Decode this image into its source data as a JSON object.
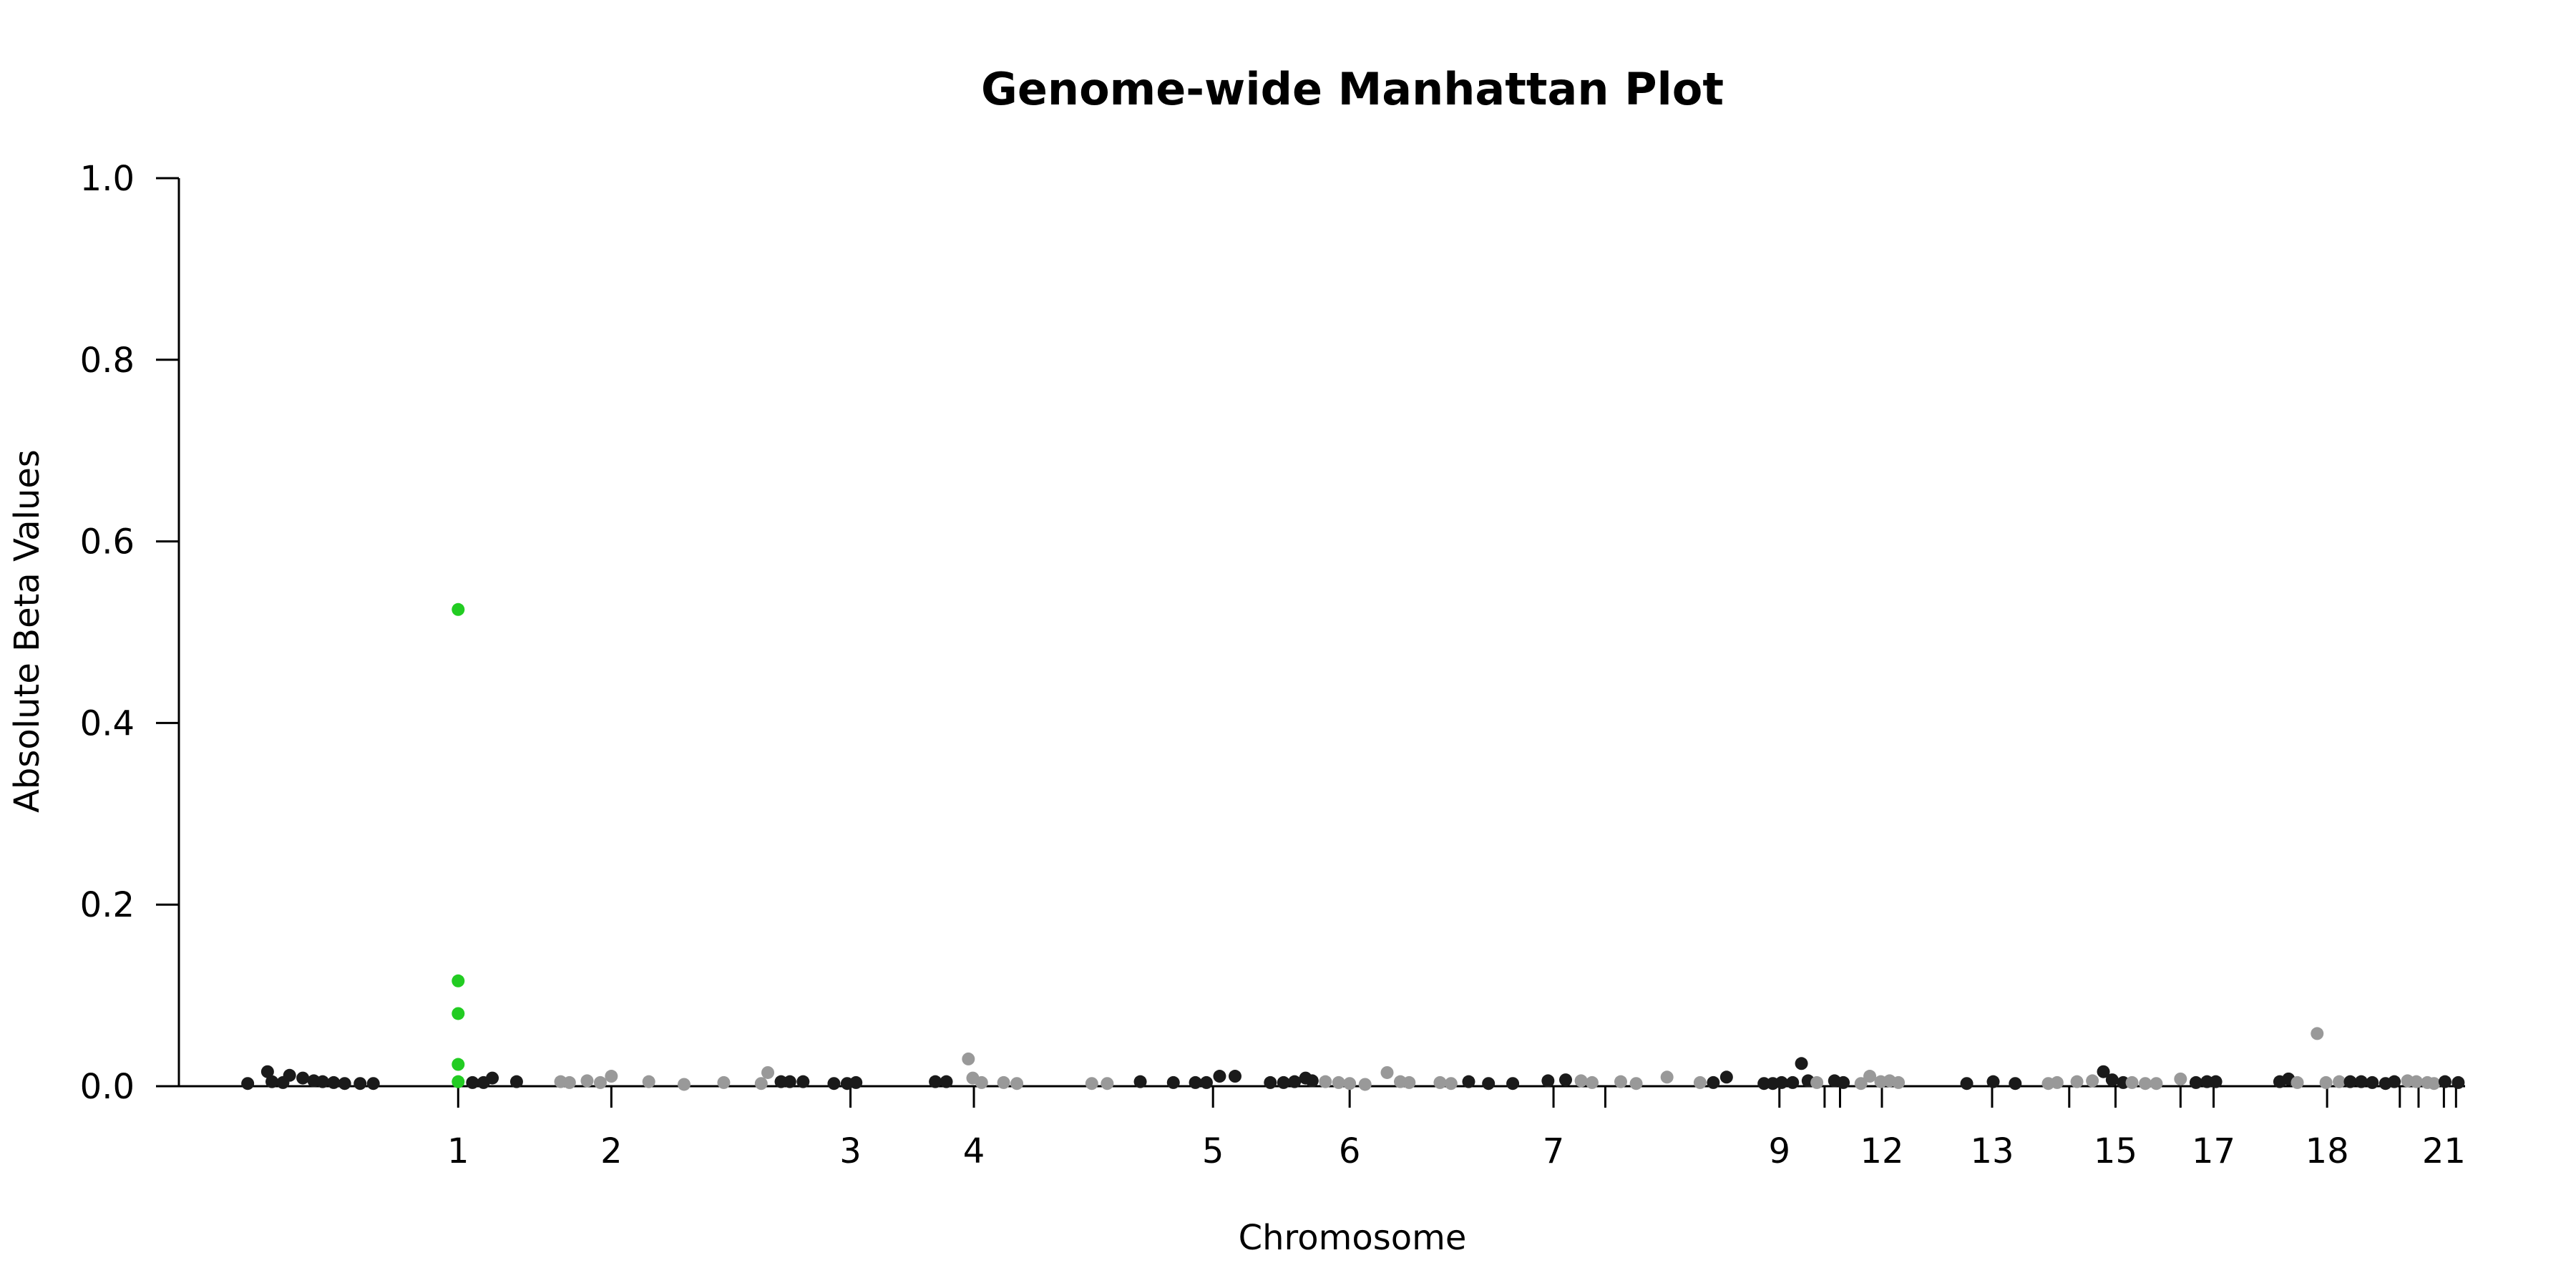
{
  "chart_data": {
    "type": "scatter",
    "title": "Genome-wide Manhattan Plot",
    "xlabel": "Chromosome",
    "ylabel": "Absolute Beta Values",
    "ylim": [
      0,
      1.0
    ],
    "yticks": [
      "0.0",
      "0.2",
      "0.4",
      "0.6",
      "0.8",
      "1.0"
    ],
    "xticks": [
      {
        "label": "1",
        "pos": 0.0975
      },
      {
        "label": "2",
        "pos": 0.167
      },
      {
        "label": "3",
        "pos": 0.2755
      },
      {
        "label": "4",
        "pos": 0.3315
      },
      {
        "label": "5",
        "pos": 0.44
      },
      {
        "label": "6",
        "pos": 0.502
      },
      {
        "label": "7",
        "pos": 0.5945
      },
      {
        "label": "",
        "pos": 0.618
      },
      {
        "label": "9",
        "pos": 0.697
      },
      {
        "label": "",
        "pos": 0.7175
      },
      {
        "label": "",
        "pos": 0.7245
      },
      {
        "label": "12",
        "pos": 0.7435
      },
      {
        "label": "13",
        "pos": 0.7935
      },
      {
        "label": "",
        "pos": 0.8285
      },
      {
        "label": "15",
        "pos": 0.8495
      },
      {
        "label": "",
        "pos": 0.879
      },
      {
        "label": "17",
        "pos": 0.894
      },
      {
        "label": "18",
        "pos": 0.9455
      },
      {
        "label": "",
        "pos": 0.9785
      },
      {
        "label": "",
        "pos": 0.987
      },
      {
        "label": "21",
        "pos": 0.9985
      },
      {
        "label": "",
        "pos": 1.004
      }
    ],
    "colors": {
      "dark": "#1a1a1a",
      "light": "#999999",
      "highlight": "#22cc22"
    },
    "points": [
      {
        "x": 0.002,
        "y": 0.003,
        "c": "dark"
      },
      {
        "x": 0.011,
        "y": 0.016,
        "c": "dark"
      },
      {
        "x": 0.013,
        "y": 0.005,
        "c": "dark"
      },
      {
        "x": 0.018,
        "y": 0.004,
        "c": "dark"
      },
      {
        "x": 0.021,
        "y": 0.012,
        "c": "dark"
      },
      {
        "x": 0.027,
        "y": 0.009,
        "c": "dark"
      },
      {
        "x": 0.032,
        "y": 0.006,
        "c": "dark"
      },
      {
        "x": 0.036,
        "y": 0.005,
        "c": "dark"
      },
      {
        "x": 0.041,
        "y": 0.004,
        "c": "dark"
      },
      {
        "x": 0.046,
        "y": 0.003,
        "c": "dark"
      },
      {
        "x": 0.053,
        "y": 0.003,
        "c": "dark"
      },
      {
        "x": 0.059,
        "y": 0.003,
        "c": "dark"
      },
      {
        "x": 0.0975,
        "y": 0.525,
        "c": "highlight"
      },
      {
        "x": 0.0975,
        "y": 0.116,
        "c": "highlight"
      },
      {
        "x": 0.0975,
        "y": 0.08,
        "c": "highlight"
      },
      {
        "x": 0.0975,
        "y": 0.024,
        "c": "highlight"
      },
      {
        "x": 0.0975,
        "y": 0.005,
        "c": "highlight"
      },
      {
        "x": 0.104,
        "y": 0.004,
        "c": "dark"
      },
      {
        "x": 0.109,
        "y": 0.004,
        "c": "dark"
      },
      {
        "x": 0.113,
        "y": 0.009,
        "c": "dark"
      },
      {
        "x": 0.124,
        "y": 0.005,
        "c": "dark"
      },
      {
        "x": 0.144,
        "y": 0.005,
        "c": "light"
      },
      {
        "x": 0.148,
        "y": 0.004,
        "c": "light"
      },
      {
        "x": 0.156,
        "y": 0.006,
        "c": "light"
      },
      {
        "x": 0.162,
        "y": 0.004,
        "c": "light"
      },
      {
        "x": 0.167,
        "y": 0.011,
        "c": "light"
      },
      {
        "x": 0.184,
        "y": 0.005,
        "c": "light"
      },
      {
        "x": 0.2,
        "y": 0.002,
        "c": "light"
      },
      {
        "x": 0.218,
        "y": 0.004,
        "c": "light"
      },
      {
        "x": 0.235,
        "y": 0.003,
        "c": "light"
      },
      {
        "x": 0.238,
        "y": 0.015,
        "c": "light"
      },
      {
        "x": 0.244,
        "y": 0.005,
        "c": "dark"
      },
      {
        "x": 0.248,
        "y": 0.005,
        "c": "dark"
      },
      {
        "x": 0.254,
        "y": 0.005,
        "c": "dark"
      },
      {
        "x": 0.268,
        "y": 0.003,
        "c": "dark"
      },
      {
        "x": 0.274,
        "y": 0.003,
        "c": "dark"
      },
      {
        "x": 0.278,
        "y": 0.004,
        "c": "dark"
      },
      {
        "x": 0.314,
        "y": 0.005,
        "c": "dark"
      },
      {
        "x": 0.319,
        "y": 0.005,
        "c": "dark"
      },
      {
        "x": 0.329,
        "y": 0.03,
        "c": "light"
      },
      {
        "x": 0.331,
        "y": 0.009,
        "c": "light"
      },
      {
        "x": 0.335,
        "y": 0.004,
        "c": "light"
      },
      {
        "x": 0.345,
        "y": 0.004,
        "c": "light"
      },
      {
        "x": 0.351,
        "y": 0.003,
        "c": "light"
      },
      {
        "x": 0.385,
        "y": 0.003,
        "c": "light"
      },
      {
        "x": 0.392,
        "y": 0.003,
        "c": "light"
      },
      {
        "x": 0.407,
        "y": 0.005,
        "c": "dark"
      },
      {
        "x": 0.422,
        "y": 0.004,
        "c": "dark"
      },
      {
        "x": 0.432,
        "y": 0.004,
        "c": "dark"
      },
      {
        "x": 0.437,
        "y": 0.004,
        "c": "dark"
      },
      {
        "x": 0.443,
        "y": 0.011,
        "c": "dark"
      },
      {
        "x": 0.45,
        "y": 0.011,
        "c": "dark"
      },
      {
        "x": 0.466,
        "y": 0.004,
        "c": "dark"
      },
      {
        "x": 0.472,
        "y": 0.004,
        "c": "dark"
      },
      {
        "x": 0.477,
        "y": 0.005,
        "c": "dark"
      },
      {
        "x": 0.482,
        "y": 0.009,
        "c": "dark"
      },
      {
        "x": 0.485,
        "y": 0.006,
        "c": "dark"
      },
      {
        "x": 0.491,
        "y": 0.005,
        "c": "light"
      },
      {
        "x": 0.497,
        "y": 0.004,
        "c": "light"
      },
      {
        "x": 0.502,
        "y": 0.003,
        "c": "light"
      },
      {
        "x": 0.509,
        "y": 0.002,
        "c": "light"
      },
      {
        "x": 0.519,
        "y": 0.015,
        "c": "light"
      },
      {
        "x": 0.525,
        "y": 0.005,
        "c": "light"
      },
      {
        "x": 0.529,
        "y": 0.004,
        "c": "light"
      },
      {
        "x": 0.543,
        "y": 0.004,
        "c": "light"
      },
      {
        "x": 0.548,
        "y": 0.003,
        "c": "light"
      },
      {
        "x": 0.556,
        "y": 0.005,
        "c": "dark"
      },
      {
        "x": 0.565,
        "y": 0.003,
        "c": "dark"
      },
      {
        "x": 0.576,
        "y": 0.003,
        "c": "dark"
      },
      {
        "x": 0.592,
        "y": 0.006,
        "c": "dark"
      },
      {
        "x": 0.6,
        "y": 0.007,
        "c": "dark"
      },
      {
        "x": 0.607,
        "y": 0.006,
        "c": "light"
      },
      {
        "x": 0.612,
        "y": 0.004,
        "c": "light"
      },
      {
        "x": 0.625,
        "y": 0.005,
        "c": "light"
      },
      {
        "x": 0.632,
        "y": 0.003,
        "c": "light"
      },
      {
        "x": 0.646,
        "y": 0.01,
        "c": "light"
      },
      {
        "x": 0.661,
        "y": 0.004,
        "c": "light"
      },
      {
        "x": 0.667,
        "y": 0.004,
        "c": "dark"
      },
      {
        "x": 0.673,
        "y": 0.01,
        "c": "dark"
      },
      {
        "x": 0.69,
        "y": 0.003,
        "c": "dark"
      },
      {
        "x": 0.694,
        "y": 0.003,
        "c": "dark"
      },
      {
        "x": 0.698,
        "y": 0.004,
        "c": "dark"
      },
      {
        "x": 0.703,
        "y": 0.004,
        "c": "dark"
      },
      {
        "x": 0.707,
        "y": 0.025,
        "c": "dark"
      },
      {
        "x": 0.71,
        "y": 0.006,
        "c": "dark"
      },
      {
        "x": 0.714,
        "y": 0.004,
        "c": "light"
      },
      {
        "x": 0.722,
        "y": 0.006,
        "c": "dark"
      },
      {
        "x": 0.726,
        "y": 0.004,
        "c": "dark"
      },
      {
        "x": 0.734,
        "y": 0.003,
        "c": "light"
      },
      {
        "x": 0.738,
        "y": 0.011,
        "c": "light"
      },
      {
        "x": 0.743,
        "y": 0.005,
        "c": "light"
      },
      {
        "x": 0.747,
        "y": 0.006,
        "c": "light"
      },
      {
        "x": 0.751,
        "y": 0.004,
        "c": "light"
      },
      {
        "x": 0.782,
        "y": 0.003,
        "c": "dark"
      },
      {
        "x": 0.794,
        "y": 0.005,
        "c": "dark"
      },
      {
        "x": 0.804,
        "y": 0.003,
        "c": "dark"
      },
      {
        "x": 0.819,
        "y": 0.003,
        "c": "light"
      },
      {
        "x": 0.823,
        "y": 0.004,
        "c": "light"
      },
      {
        "x": 0.832,
        "y": 0.005,
        "c": "light"
      },
      {
        "x": 0.839,
        "y": 0.006,
        "c": "light"
      },
      {
        "x": 0.844,
        "y": 0.016,
        "c": "dark"
      },
      {
        "x": 0.848,
        "y": 0.007,
        "c": "dark"
      },
      {
        "x": 0.853,
        "y": 0.004,
        "c": "dark"
      },
      {
        "x": 0.857,
        "y": 0.004,
        "c": "light"
      },
      {
        "x": 0.863,
        "y": 0.003,
        "c": "light"
      },
      {
        "x": 0.868,
        "y": 0.003,
        "c": "light"
      },
      {
        "x": 0.879,
        "y": 0.008,
        "c": "light"
      },
      {
        "x": 0.886,
        "y": 0.004,
        "c": "dark"
      },
      {
        "x": 0.891,
        "y": 0.005,
        "c": "dark"
      },
      {
        "x": 0.895,
        "y": 0.005,
        "c": "dark"
      },
      {
        "x": 0.924,
        "y": 0.005,
        "c": "dark"
      },
      {
        "x": 0.928,
        "y": 0.008,
        "c": "dark"
      },
      {
        "x": 0.932,
        "y": 0.004,
        "c": "light"
      },
      {
        "x": 0.941,
        "y": 0.058,
        "c": "light"
      },
      {
        "x": 0.945,
        "y": 0.004,
        "c": "light"
      },
      {
        "x": 0.951,
        "y": 0.005,
        "c": "light"
      },
      {
        "x": 0.956,
        "y": 0.005,
        "c": "dark"
      },
      {
        "x": 0.961,
        "y": 0.005,
        "c": "dark"
      },
      {
        "x": 0.966,
        "y": 0.004,
        "c": "dark"
      },
      {
        "x": 0.972,
        "y": 0.003,
        "c": "dark"
      },
      {
        "x": 0.976,
        "y": 0.005,
        "c": "dark"
      },
      {
        "x": 0.982,
        "y": 0.006,
        "c": "light"
      },
      {
        "x": 0.986,
        "y": 0.005,
        "c": "light"
      },
      {
        "x": 0.991,
        "y": 0.004,
        "c": "light"
      },
      {
        "x": 0.994,
        "y": 0.003,
        "c": "light"
      },
      {
        "x": 0.999,
        "y": 0.005,
        "c": "dark"
      },
      {
        "x": 1.005,
        "y": 0.004,
        "c": "dark"
      }
    ]
  }
}
